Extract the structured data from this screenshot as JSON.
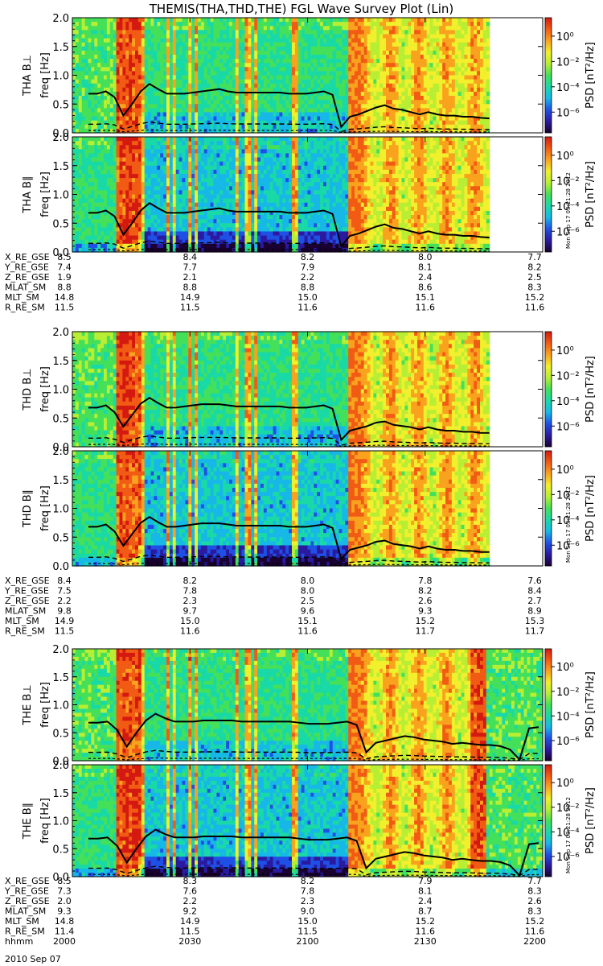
{
  "title": "THEMIS(THA,THD,THE) FGL Wave Survey Plot (Lin)",
  "date_label": "2010 Sep 07",
  "colorbar": {
    "label": "PSD [nT²/Hz]",
    "ticks": [
      "10⁰",
      "10⁻²",
      "10⁻⁴",
      "10⁻⁶"
    ],
    "stops": [
      "#1a0030",
      "#2a1aa0",
      "#1f50e6",
      "#17b8e8",
      "#19d9a6",
      "#44e05a",
      "#b8ee33",
      "#f2ef2c",
      "#f9a21e",
      "#f15b14",
      "#d41a10"
    ]
  },
  "stamp": "Mon Sep 17 03:21:28 2012",
  "line_color": "#000000",
  "chart_data": [
    {
      "type": "heatmap",
      "name": "THA B⊥",
      "ylabel": "THA B⊥",
      "ylabel2": "freq [Hz]",
      "ylim": [
        0.0,
        2.0
      ],
      "yticks": [
        "0.0",
        "0.5",
        "1.0",
        "1.5",
        "2.0"
      ],
      "curve": [
        0.68,
        0.68,
        0.72,
        0.62,
        0.3,
        0.5,
        0.72,
        0.85,
        0.76,
        0.68,
        0.68,
        0.68,
        0.7,
        0.72,
        0.74,
        0.76,
        0.72,
        0.7,
        0.7,
        0.7,
        0.7,
        0.7,
        0.7,
        0.68,
        0.68,
        0.68,
        0.7,
        0.72,
        0.66,
        0.1,
        0.28,
        0.32,
        0.38,
        0.44,
        0.48,
        0.42,
        0.4,
        0.36,
        0.32,
        0.36,
        0.32,
        0.3,
        0.3,
        0.28,
        0.28,
        0.26,
        0.25
      ]
    },
    {
      "type": "heatmap",
      "name": "THA B∥",
      "ylabel": "THA B∥",
      "ylabel2": "freq [Hz]",
      "ylim": [
        0.0,
        2.0
      ],
      "yticks": [
        "0.0",
        "0.5",
        "1.0",
        "1.5",
        "2.0"
      ],
      "curve": [
        0.68,
        0.68,
        0.72,
        0.62,
        0.3,
        0.5,
        0.72,
        0.85,
        0.76,
        0.68,
        0.68,
        0.68,
        0.7,
        0.72,
        0.74,
        0.76,
        0.72,
        0.7,
        0.7,
        0.7,
        0.7,
        0.7,
        0.7,
        0.68,
        0.68,
        0.68,
        0.7,
        0.72,
        0.66,
        0.1,
        0.28,
        0.32,
        0.38,
        0.44,
        0.48,
        0.42,
        0.4,
        0.36,
        0.32,
        0.36,
        0.32,
        0.3,
        0.3,
        0.28,
        0.28,
        0.26,
        0.25
      ]
    },
    {
      "type": "heatmap",
      "name": "THD B⊥",
      "ylabel": "THD B⊥",
      "ylabel2": "freq [Hz]",
      "ylim": [
        0.0,
        2.0
      ],
      "yticks": [
        "0.0",
        "0.5",
        "1.0",
        "1.5",
        "2.0"
      ],
      "curve": [
        0.68,
        0.68,
        0.72,
        0.6,
        0.35,
        0.55,
        0.75,
        0.85,
        0.76,
        0.68,
        0.68,
        0.7,
        0.72,
        0.74,
        0.74,
        0.74,
        0.72,
        0.7,
        0.7,
        0.7,
        0.7,
        0.7,
        0.7,
        0.68,
        0.68,
        0.68,
        0.7,
        0.72,
        0.66,
        0.12,
        0.28,
        0.32,
        0.36,
        0.42,
        0.44,
        0.38,
        0.36,
        0.34,
        0.3,
        0.34,
        0.3,
        0.28,
        0.28,
        0.26,
        0.26,
        0.24,
        0.24
      ]
    },
    {
      "type": "heatmap",
      "name": "THD B∥",
      "ylabel": "THD B∥",
      "ylabel2": "freq [Hz]",
      "ylim": [
        0.0,
        2.0
      ],
      "yticks": [
        "0.0",
        "0.5",
        "1.0",
        "1.5",
        "2.0"
      ],
      "curve": [
        0.68,
        0.68,
        0.72,
        0.6,
        0.35,
        0.55,
        0.75,
        0.85,
        0.76,
        0.68,
        0.68,
        0.7,
        0.72,
        0.74,
        0.74,
        0.74,
        0.72,
        0.7,
        0.7,
        0.7,
        0.7,
        0.7,
        0.7,
        0.68,
        0.68,
        0.68,
        0.7,
        0.72,
        0.66,
        0.12,
        0.28,
        0.32,
        0.36,
        0.42,
        0.44,
        0.38,
        0.36,
        0.34,
        0.3,
        0.34,
        0.3,
        0.28,
        0.28,
        0.26,
        0.26,
        0.24,
        0.24
      ]
    },
    {
      "type": "heatmap",
      "name": "THE B⊥",
      "ylabel": "THE B⊥",
      "ylabel2": "freq [Hz]",
      "ylim": [
        0.0,
        2.0
      ],
      "yticks": [
        "0.0",
        "0.5",
        "1.0",
        "1.5",
        "2.0"
      ],
      "curve": [
        0.68,
        0.68,
        0.7,
        0.55,
        0.25,
        0.5,
        0.72,
        0.84,
        0.76,
        0.7,
        0.7,
        0.7,
        0.72,
        0.72,
        0.72,
        0.72,
        0.7,
        0.7,
        0.7,
        0.7,
        0.7,
        0.7,
        0.68,
        0.66,
        0.66,
        0.66,
        0.68,
        0.7,
        0.64,
        0.15,
        0.32,
        0.36,
        0.4,
        0.44,
        0.42,
        0.38,
        0.36,
        0.34,
        0.3,
        0.32,
        0.3,
        0.28,
        0.28,
        0.26,
        0.2,
        0.02,
        0.58,
        0.6
      ]
    },
    {
      "type": "heatmap",
      "name": "THE B∥",
      "ylabel": "THE B∥",
      "ylabel2": "freq [Hz]",
      "ylim": [
        0.0,
        2.0
      ],
      "yticks": [
        "0.0",
        "0.5",
        "1.0",
        "1.5",
        "2.0"
      ],
      "curve": [
        0.68,
        0.68,
        0.7,
        0.55,
        0.25,
        0.5,
        0.72,
        0.84,
        0.76,
        0.7,
        0.7,
        0.7,
        0.72,
        0.72,
        0.72,
        0.72,
        0.7,
        0.7,
        0.7,
        0.7,
        0.7,
        0.7,
        0.68,
        0.66,
        0.66,
        0.66,
        0.68,
        0.7,
        0.64,
        0.15,
        0.32,
        0.36,
        0.4,
        0.44,
        0.42,
        0.38,
        0.36,
        0.34,
        0.3,
        0.32,
        0.3,
        0.28,
        0.28,
        0.26,
        0.2,
        0.02,
        0.58,
        0.6
      ]
    }
  ],
  "ephemeris": [
    {
      "rows": [
        {
          "label": "X_RE_GSE",
          "values": [
            "8.5",
            "8.4",
            "8.2",
            "8.0",
            "7.7"
          ]
        },
        {
          "label": "Y_RE_GSE",
          "values": [
            "7.4",
            "7.7",
            "7.9",
            "8.1",
            "8.2"
          ]
        },
        {
          "label": "Z_RE_GSE",
          "values": [
            "1.9",
            "2.1",
            "2.2",
            "2.4",
            "2.5"
          ]
        },
        {
          "label": "MLAT_SM",
          "values": [
            "8.8",
            "8.8",
            "8.8",
            "8.6",
            "8.3"
          ]
        },
        {
          "label": "MLT_SM",
          "values": [
            "14.8",
            "14.9",
            "15.0",
            "15.1",
            "15.2"
          ]
        },
        {
          "label": "R_RE_SM",
          "values": [
            "11.5",
            "11.5",
            "11.6",
            "11.6",
            "11.6"
          ]
        }
      ]
    },
    {
      "rows": [
        {
          "label": "X_RE_GSE",
          "values": [
            "8.4",
            "8.2",
            "8.0",
            "7.8",
            "7.6"
          ]
        },
        {
          "label": "Y_RE_GSE",
          "values": [
            "7.5",
            "7.8",
            "8.0",
            "8.2",
            "8.4"
          ]
        },
        {
          "label": "Z_RE_GSE",
          "values": [
            "2.2",
            "2.3",
            "2.5",
            "2.6",
            "2.7"
          ]
        },
        {
          "label": "MLAT_SM",
          "values": [
            "9.8",
            "9.7",
            "9.6",
            "9.3",
            "8.9"
          ]
        },
        {
          "label": "MLT_SM",
          "values": [
            "14.9",
            "15.0",
            "15.1",
            "15.2",
            "15.3"
          ]
        },
        {
          "label": "R_RE_SM",
          "values": [
            "11.5",
            "11.6",
            "11.6",
            "11.7",
            "11.7"
          ]
        }
      ]
    },
    {
      "rows": [
        {
          "label": "X_RE_GSE",
          "values": [
            "8.5",
            "8.3",
            "8.2",
            "7.9",
            "7.7"
          ]
        },
        {
          "label": "Y_RE_GSE",
          "values": [
            "7.3",
            "7.6",
            "7.8",
            "8.1",
            "8.3"
          ]
        },
        {
          "label": "Z_RE_GSE",
          "values": [
            "2.0",
            "2.2",
            "2.3",
            "2.4",
            "2.6"
          ]
        },
        {
          "label": "MLAT_SM",
          "values": [
            "9.3",
            "9.2",
            "9.0",
            "8.7",
            "8.3"
          ]
        },
        {
          "label": "MLT_SM",
          "values": [
            "14.8",
            "14.9",
            "15.0",
            "15.2",
            "15.2"
          ]
        },
        {
          "label": "R_RE_SM",
          "values": [
            "11.4",
            "11.5",
            "11.5",
            "11.6",
            "11.6"
          ]
        },
        {
          "label": "hhmm",
          "values": [
            "2000",
            "2030",
            "2100",
            "2130",
            "2200"
          ]
        }
      ]
    }
  ]
}
